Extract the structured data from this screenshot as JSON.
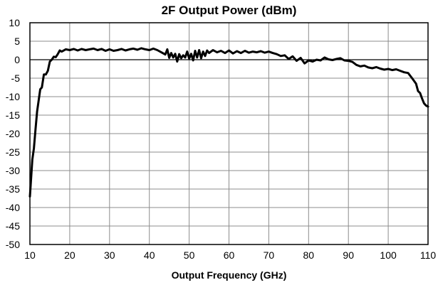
{
  "chart_data": {
    "type": "line",
    "title": "2F Output Power (dBm)",
    "xlabel": "Output Frequency (GHz)",
    "ylabel": "",
    "xlim": [
      10,
      110
    ],
    "ylim": [
      -50,
      10
    ],
    "xticks": [
      10,
      20,
      30,
      40,
      50,
      60,
      70,
      80,
      90,
      100,
      110
    ],
    "yticks": [
      10,
      5,
      0,
      -5,
      -10,
      -15,
      -20,
      -25,
      -30,
      -35,
      -40,
      -45,
      -50
    ],
    "grid": true,
    "legend": "none",
    "series": [
      {
        "color": "#000000",
        "x": [
          10,
          10.3,
          10.6,
          11,
          11.4,
          11.8,
          12.2,
          12.6,
          13,
          13.5,
          14,
          14.5,
          15,
          15.5,
          16,
          16.5,
          17,
          17.5,
          18,
          19,
          20,
          21,
          22,
          23,
          24,
          25,
          26,
          27,
          28,
          29,
          30,
          31,
          32,
          33,
          34,
          35,
          36,
          37,
          38,
          39,
          40,
          41,
          42,
          43,
          44,
          44.5,
          45,
          45.5,
          46,
          46.5,
          47,
          47.5,
          48,
          48.5,
          49,
          49.5,
          50,
          50.5,
          51,
          51.5,
          52,
          52.5,
          53,
          53.5,
          54,
          54.5,
          55,
          56,
          57,
          58,
          59,
          60,
          61,
          62,
          63,
          64,
          65,
          66,
          67,
          68,
          69,
          70,
          71,
          72,
          73,
          74,
          75,
          76,
          77,
          78,
          79,
          80,
          81,
          82,
          83,
          84,
          85,
          86,
          87,
          88,
          89,
          90,
          91,
          92,
          93,
          94,
          95,
          96,
          97,
          98,
          99,
          100,
          101,
          102,
          103,
          104,
          105,
          106,
          107,
          107.5,
          108,
          108.5,
          109,
          109.5,
          110
        ],
        "values": [
          -37,
          -32,
          -27,
          -24,
          -19,
          -14,
          -11,
          -8,
          -7.5,
          -4,
          -4,
          -3,
          -0.5,
          0,
          0.8,
          0.7,
          1.5,
          2.5,
          2.2,
          2.8,
          2.6,
          2.9,
          2.5,
          2.9,
          2.6,
          2.8,
          3.0,
          2.6,
          2.9,
          2.4,
          2.8,
          2.4,
          2.6,
          2.9,
          2.5,
          2.8,
          3.0,
          2.7,
          3.1,
          2.8,
          2.6,
          3.0,
          2.6,
          2.0,
          1.4,
          2.8,
          0.5,
          1.8,
          0.6,
          1.6,
          -0.5,
          1.5,
          0.4,
          1.2,
          0.6,
          2.2,
          0.3,
          1.6,
          -0.2,
          2.4,
          0.6,
          2.6,
          0.4,
          2.2,
          1.0,
          2.5,
          1.8,
          2.6,
          2.0,
          2.4,
          1.8,
          2.5,
          1.7,
          2.3,
          1.8,
          2.4,
          1.9,
          2.2,
          2.0,
          2.3,
          1.9,
          2.2,
          1.8,
          1.5,
          1.0,
          1.2,
          0.2,
          0.9,
          -0.3,
          0.5,
          -1.0,
          -0.2,
          -0.5,
          0.0,
          -0.2,
          0.6,
          0.1,
          -0.1,
          0.2,
          0.4,
          -0.2,
          -0.3,
          -0.6,
          -1.4,
          -1.8,
          -1.6,
          -2.1,
          -2.3,
          -2.0,
          -2.4,
          -2.7,
          -2.5,
          -2.8,
          -2.6,
          -3.0,
          -3.4,
          -3.6,
          -5.0,
          -6.5,
          -8.5,
          -9.0,
          -10.5,
          -11.8,
          -12.4,
          -12.7
        ]
      }
    ]
  }
}
